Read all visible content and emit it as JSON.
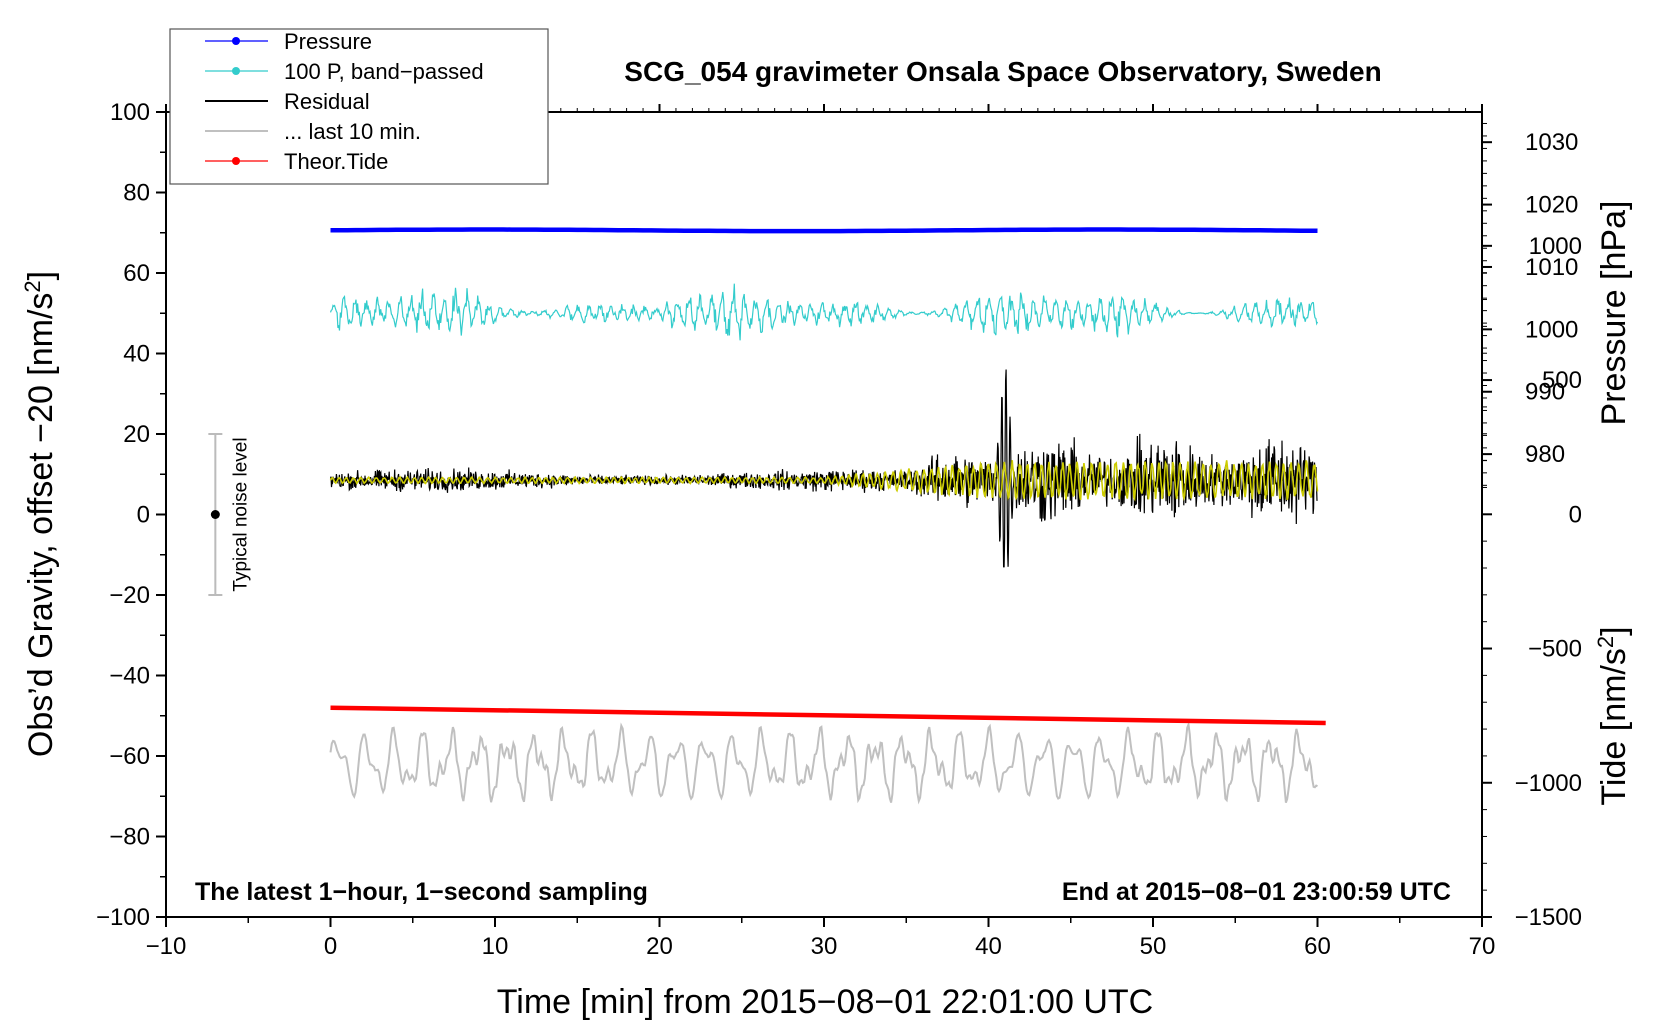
{
  "chart_data": {
    "type": "line",
    "title": "SCG_054 gravimeter Onsala Space Observatory, Sweden",
    "xlabel": "Time [min] from 2015−08−01 22:01:00 UTC",
    "ylabel_left_main": "Obs’d Gravity, offset −20 [nm/s",
    "ylabel_left_sup": "2",
    "ylabel_left_end": "]",
    "ylabel_right_pressure": "Pressure [hPa]",
    "ylabel_right_tide_main": "Tide [nm/s",
    "ylabel_right_tide_sup": "2",
    "ylabel_right_tide_end": "]",
    "xlim": [
      -10,
      70
    ],
    "ylim": [
      -100,
      100
    ],
    "x_ticks": [
      -10,
      0,
      10,
      20,
      30,
      40,
      50,
      60,
      70
    ],
    "x_tick_labels": [
      "−10",
      "0",
      "10",
      "20",
      "30",
      "40",
      "50",
      "60",
      "70"
    ],
    "y_ticks": [
      100,
      80,
      60,
      40,
      20,
      0,
      -20,
      -40,
      -60,
      -80,
      -100
    ],
    "y_tick_labels": [
      "100",
      "80",
      "60",
      "40",
      "20",
      "0",
      "−20",
      "−40",
      "−60",
      "−80",
      "−100"
    ],
    "pressure_axis": {
      "ticks": [
        1030,
        1020,
        1010,
        1000,
        990,
        980
      ],
      "tick_labels": [
        "1030",
        "1020",
        "1010",
        "1000",
        "990",
        "980"
      ],
      "ref_value": 1000,
      "ref_y": 46,
      "units_per_hpa": 1.55
    },
    "tide_axis": {
      "ticks": [
        1000,
        500,
        0,
        -500,
        -1000,
        -1500
      ],
      "tick_labels": [
        "1000",
        "500",
        "0",
        "−500",
        "−1000",
        "−1500"
      ],
      "ref_value": -1500,
      "ref_y": -100,
      "units_per_nms2": 0.0667
    },
    "series": [
      {
        "name": "Pressure",
        "color": "#0000ff",
        "style": "thick",
        "x_range": [
          0,
          60
        ],
        "y_start": 70.6,
        "y_end": 70.6,
        "noise": 0.2
      },
      {
        "name": "100 P, band−passed",
        "color": "#33cccc",
        "style": "noise",
        "x_range": [
          0,
          60
        ],
        "y_center": 50,
        "amplitude": 3.5
      },
      {
        "name": "Residual",
        "color": "#000000",
        "style": "noise",
        "x_range": [
          0,
          60
        ],
        "y_center": 8.5,
        "amplitude_quiet": 3,
        "amplitude_event": 12,
        "event_start_min": 40,
        "peak_min": 41,
        "peak_max": 40,
        "peak_min_value": -13
      },
      {
        "name": "... last 10 min.",
        "color": "#c0c0c0",
        "style": "oscillation",
        "x_range": [
          0,
          60
        ],
        "y_center": -62,
        "amplitude": 8
      },
      {
        "name": "Theor.Tide",
        "color": "#ff0000",
        "style": "thick",
        "x_range": [
          0,
          60.5
        ],
        "y_start": -48,
        "y_end": -51.8
      }
    ],
    "overlay_series": {
      "name": "filtered residual",
      "color": "#cccc00",
      "x_range": [
        0,
        60
      ],
      "y_center": 8.5
    },
    "noise_level": {
      "label": "Typical noise level",
      "x": -7,
      "y_center": 0,
      "y_low": -20,
      "y_high": 20
    },
    "annotations": {
      "left_note": "The latest 1−hour, 1−second sampling",
      "right_note": "End at 2015−08−01 23:00:59 UTC"
    },
    "legend": {
      "position": "top-left",
      "entries": [
        {
          "label": "Pressure",
          "color": "#0000ff",
          "marker": true
        },
        {
          "label": "100 P, band−passed",
          "color": "#33cccc",
          "marker": true
        },
        {
          "label": "Residual",
          "color": "#000000",
          "marker": false
        },
        {
          "label": "... last 10 min.",
          "color": "#c0c0c0",
          "marker": false
        },
        {
          "label": "Theor.Tide",
          "color": "#ff0000",
          "marker": true
        }
      ]
    }
  }
}
